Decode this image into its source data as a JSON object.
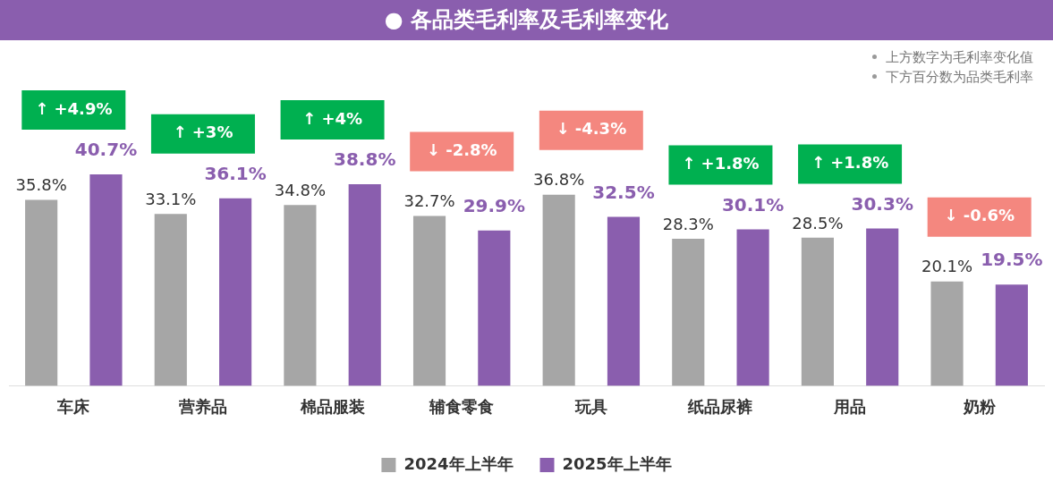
{
  "chart_data": {
    "type": "bar",
    "title": "● 各品类毛利率及毛利率变化",
    "categories": [
      "车床",
      "营养品",
      "棉品服装",
      "辅食零食",
      "玩具",
      "纸品尿裤",
      "用品",
      "奶粉"
    ],
    "series": [
      {
        "name": "2024年上半年",
        "color": "#a6a6a6",
        "values": [
          35.8,
          33.1,
          34.8,
          32.7,
          36.8,
          28.3,
          28.5,
          20.1
        ],
        "value_labels": [
          "35.8%",
          "33.1%",
          "34.8%",
          "32.7%",
          "36.8%",
          "28.3%",
          "28.5%",
          "20.1%"
        ]
      },
      {
        "name": "2025年上半年",
        "color": "#8a5eae",
        "values": [
          40.7,
          36.1,
          38.8,
          29.9,
          32.5,
          30.1,
          30.3,
          19.5
        ],
        "value_labels": [
          "40.7%",
          "36.1%",
          "38.8%",
          "29.9%",
          "32.5%",
          "30.1%",
          "30.3%",
          "19.5%"
        ]
      }
    ],
    "tick_labels": "x",
    "legend": "bottom",
    "grid": false,
    "annotations": [
      "↑ +4.9%",
      "↑ +3%",
      "↑ +4%",
      "↓ -2.8%",
      "↓ -4.3%",
      "↑ +1.8%",
      "↑ +1.8%",
      "↓ -0.6%",
      "上方数字为毛利率变化值",
      "下方百分数为品类毛利率"
    ]
  }
}
